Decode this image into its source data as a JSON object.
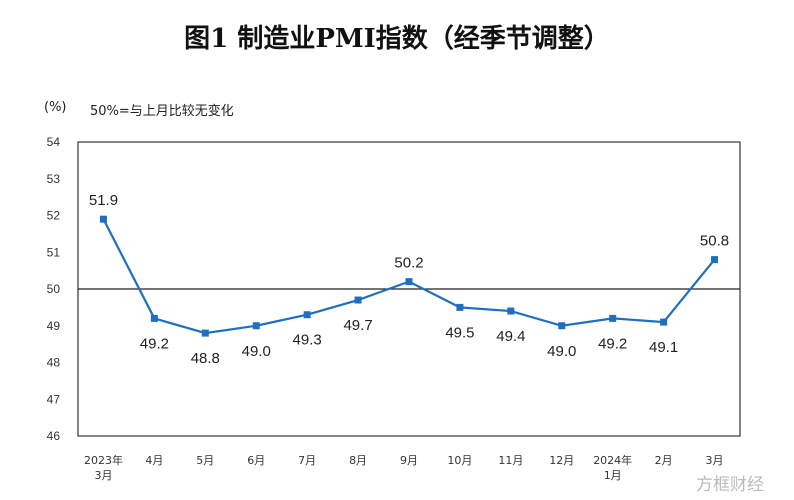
{
  "chart_data": {
    "type": "line",
    "title": "图1  制造业PMI指数（经季节调整）",
    "ylabel": "(%)",
    "annotation": "50%=与上月比较无变化",
    "categories": [
      [
        "2023年",
        "3月"
      ],
      [
        "4月"
      ],
      [
        "5月"
      ],
      [
        "6月"
      ],
      [
        "7月"
      ],
      [
        "8月"
      ],
      [
        "9月"
      ],
      [
        "10月"
      ],
      [
        "11月"
      ],
      [
        "12月"
      ],
      [
        "2024年",
        "1月"
      ],
      [
        "2月"
      ],
      [
        "3月"
      ]
    ],
    "values": [
      51.9,
      49.2,
      48.8,
      49.0,
      49.3,
      49.7,
      50.2,
      49.5,
      49.4,
      49.0,
      49.2,
      49.1,
      50.8
    ],
    "labels": [
      "51.9",
      "49.2",
      "48.8",
      "49.0",
      "49.3",
      "49.7",
      "50.2",
      "49.5",
      "49.4",
      "49.0",
      "49.2",
      "49.1",
      "50.8"
    ],
    "ylim": [
      46,
      54
    ],
    "yticks": [
      46,
      47,
      48,
      49,
      50,
      51,
      52,
      53,
      54
    ],
    "reference_line": 50,
    "grid": false,
    "series_color": "#1f6fc0"
  },
  "watermark": "方框财经"
}
